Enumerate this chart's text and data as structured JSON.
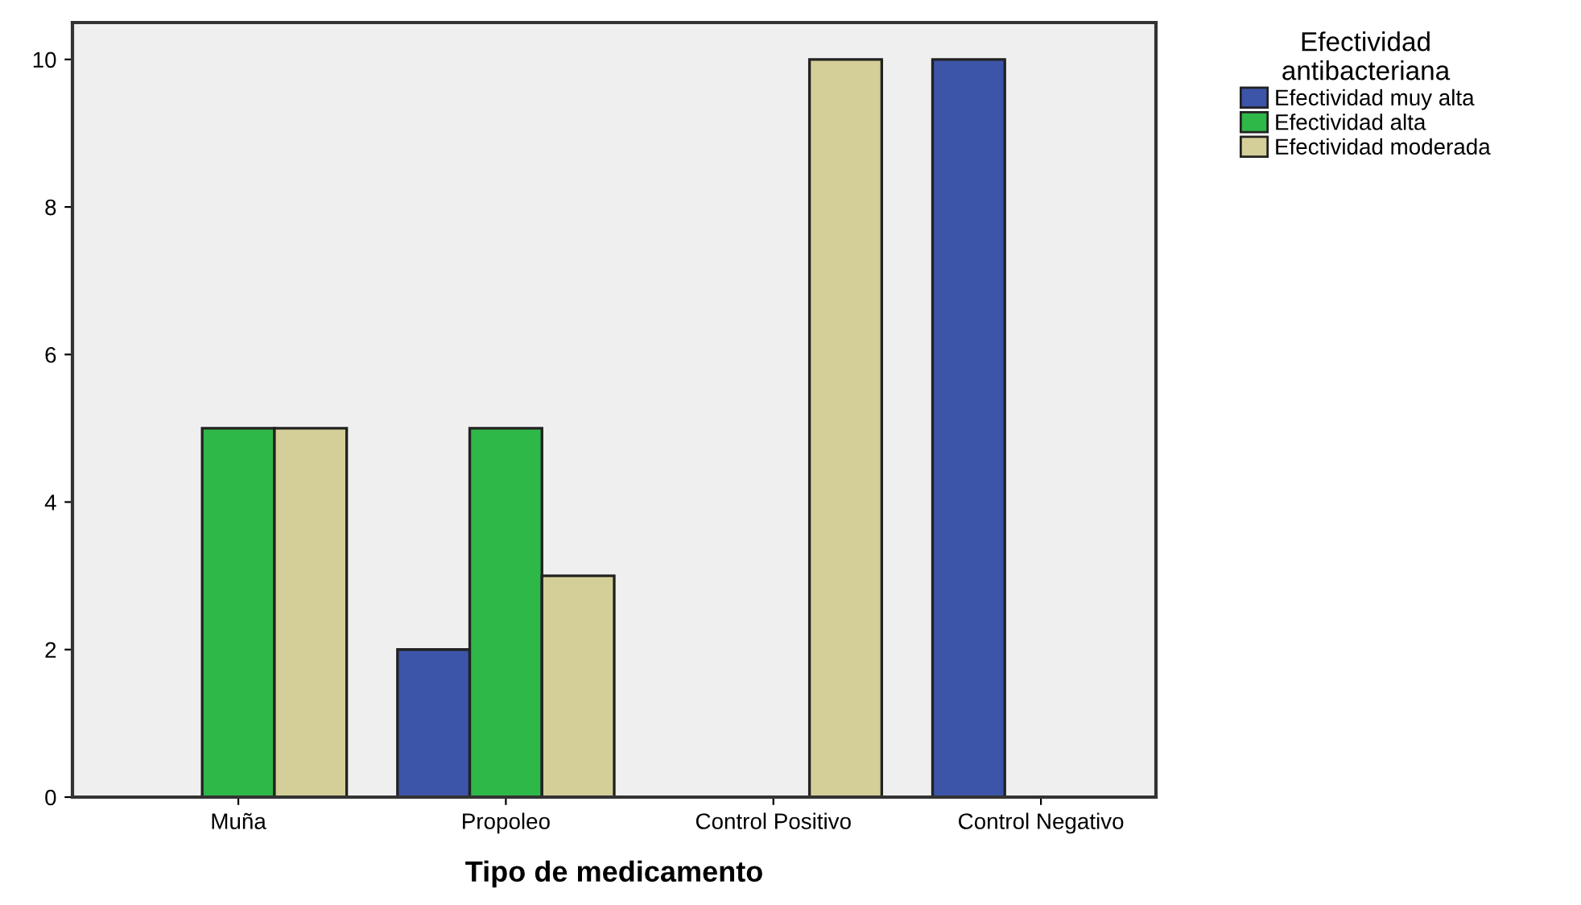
{
  "chart_data": {
    "type": "bar",
    "xlabel": "Tipo de medicamento",
    "legend_title": "Efectividad\nantibacteriana",
    "categories": [
      "Muña",
      "Propoleo",
      "Control Positivo",
      "Control Negativo"
    ],
    "series": [
      {
        "name": "Efectividad muy alta",
        "color": "#3d55a8",
        "values": [
          null,
          2,
          null,
          10
        ]
      },
      {
        "name": "Efectividad alta",
        "color": "#2eb848",
        "values": [
          5,
          5,
          null,
          null
        ]
      },
      {
        "name": "Efectividad moderada",
        "color": "#d4cf98",
        "values": [
          5,
          3,
          10,
          null
        ]
      }
    ],
    "ylim": [
      0,
      10.5
    ],
    "yticks": [
      0,
      2,
      4,
      6,
      8,
      10
    ],
    "grid": false,
    "legend": "top right"
  }
}
